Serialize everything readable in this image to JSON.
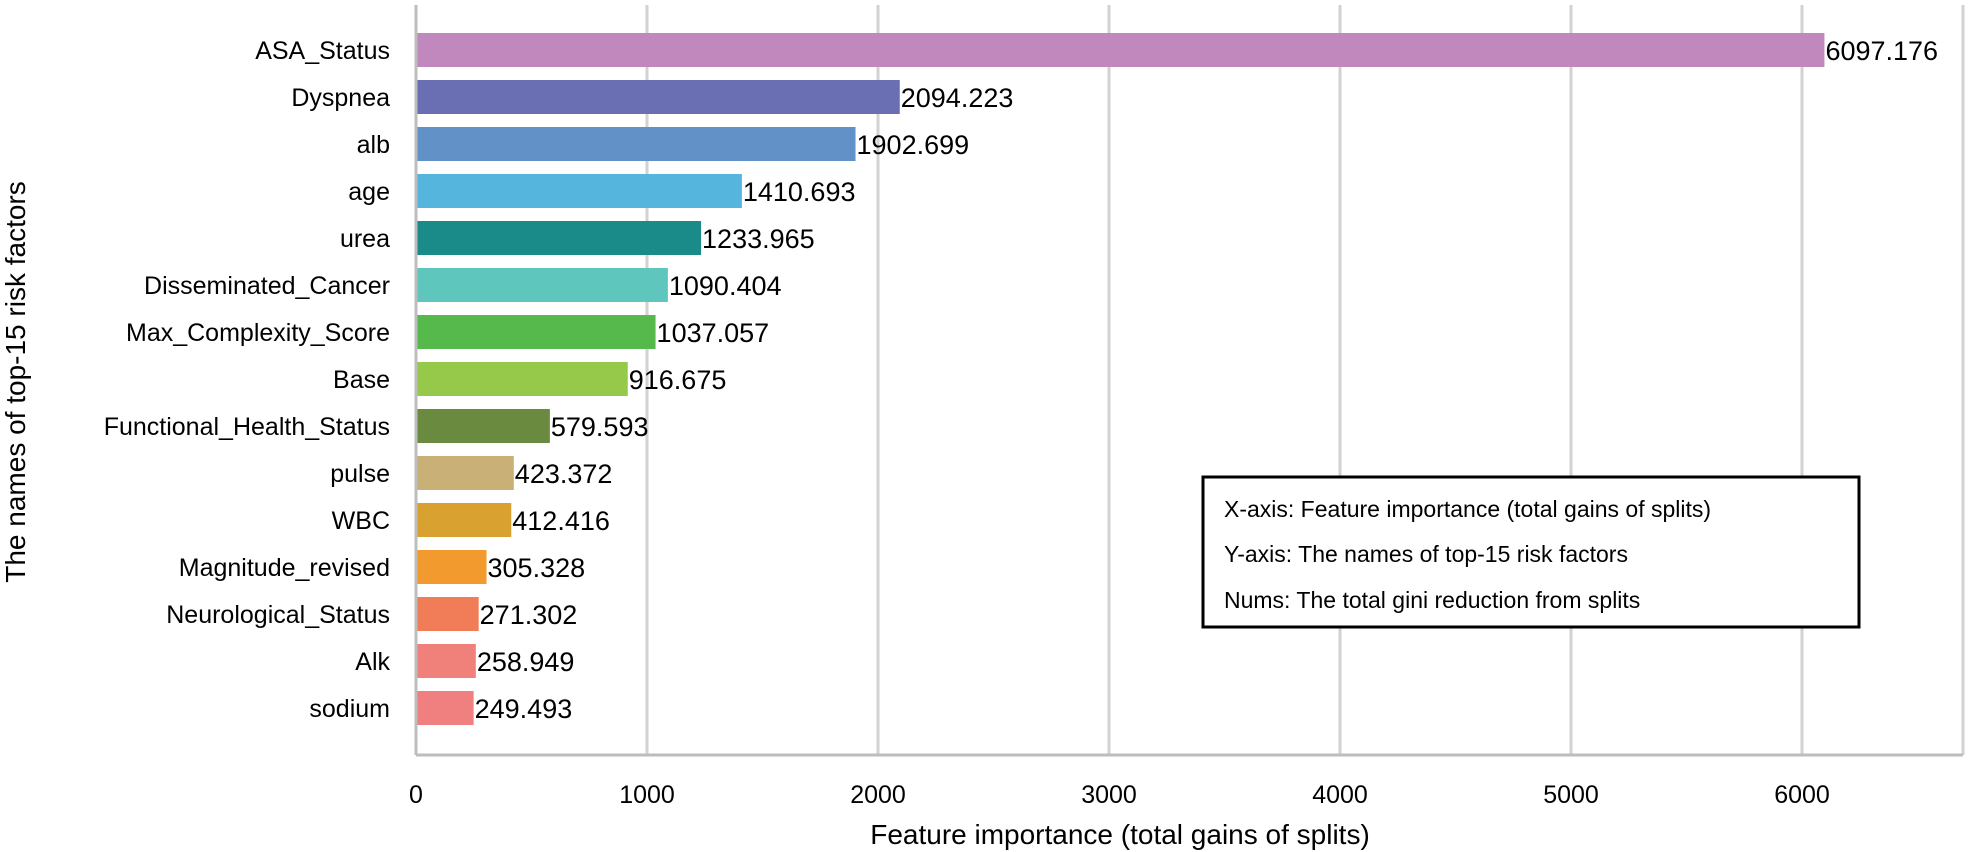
{
  "chart_data": {
    "type": "bar",
    "orientation": "horizontal",
    "xlabel": "Feature importance (total gains of splits)",
    "ylabel": "The names of top-15 risk factors",
    "xlim": [
      0,
      6700
    ],
    "xticks": [
      0,
      1000,
      2000,
      3000,
      4000,
      5000,
      6000
    ],
    "grid": true,
    "categories": [
      "ASA_Status",
      "Dyspnea",
      "alb",
      "age",
      "urea",
      "Disseminated_Cancer",
      "Max_Complexity_Score",
      "Base",
      "Functional_Health_Status",
      "pulse",
      "WBC",
      "Magnitude_revised",
      "Neurological_Status",
      "Alk",
      "sodium"
    ],
    "values": [
      6097.176,
      2094.223,
      1902.699,
      1410.693,
      1233.965,
      1090.404,
      1037.057,
      916.675,
      579.593,
      423.372,
      412.416,
      305.328,
      271.302,
      258.949,
      249.493
    ],
    "value_labels": [
      "6097.176",
      "2094.223",
      "1902.699",
      "1410.693",
      "1233.965",
      "1090.404",
      "1037.057",
      "916.675",
      "579.593",
      "423.372",
      "412.416",
      "305.328",
      "271.302",
      "258.949",
      "249.493"
    ],
    "colors": [
      "#c188bd",
      "#6a6eb3",
      "#6291c8",
      "#56b5dc",
      "#1a8b89",
      "#5fc6bd",
      "#56b94c",
      "#96c84a",
      "#6a8a40",
      "#c8b077",
      "#d9a230",
      "#f29a2e",
      "#f07d57",
      "#f0807a",
      "#f08080"
    ],
    "legend_box": {
      "position": "center-right",
      "lines": [
        "X-axis: Feature importance (total gains of splits)",
        "Y-axis: The names of top-15 risk factors",
        "Nums: The total gini reduction from splits"
      ]
    }
  }
}
